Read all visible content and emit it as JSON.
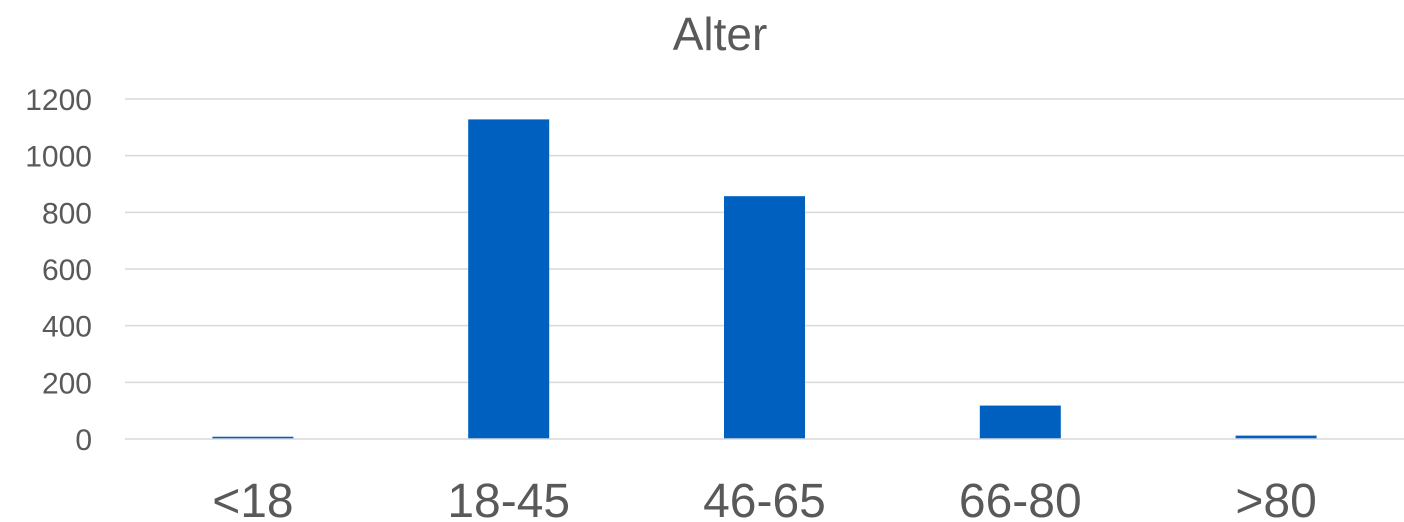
{
  "chart_data": {
    "type": "bar",
    "title": "Alter",
    "xlabel": "",
    "ylabel": "",
    "categories": [
      "<18",
      "18-45",
      "46-65",
      "66-80",
      ">80"
    ],
    "values": [
      8,
      1128,
      857,
      118,
      12
    ],
    "ylim": [
      0,
      1200
    ],
    "yticks": [
      0,
      200,
      400,
      600,
      800,
      1000,
      1200
    ],
    "grid": true,
    "legend": "none",
    "bar_color": "#0060BF"
  }
}
